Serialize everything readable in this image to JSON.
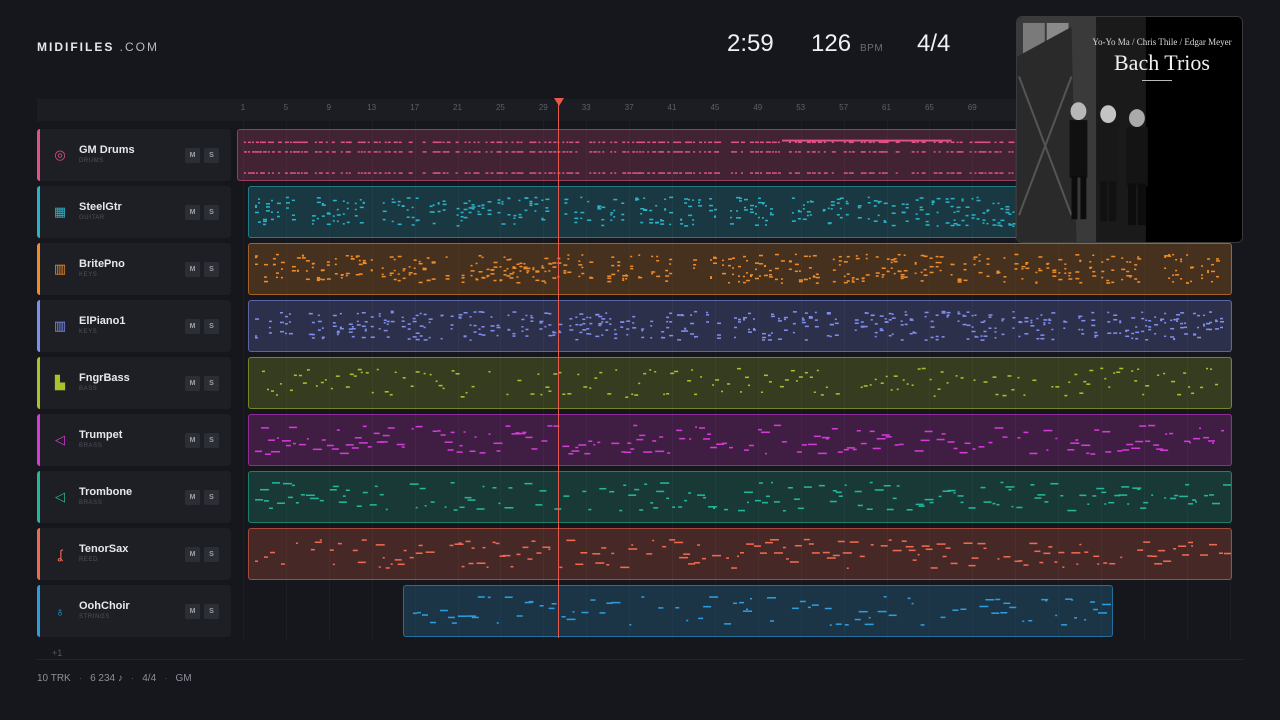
{
  "app": {
    "logo_bold": "MIDIFILES",
    "logo_rest": " .COM"
  },
  "transport": {
    "time": "2:59",
    "bpm": "126",
    "bpm_unit": "BPM",
    "meter": "4/4",
    "playhead_bar": 29
  },
  "ruler": {
    "ticks": [
      "1",
      "5",
      "9",
      "13",
      "17",
      "21",
      "25",
      "29",
      "33",
      "37",
      "41",
      "45",
      "49",
      "53",
      "57",
      "61",
      "65",
      "69"
    ]
  },
  "tracks": [
    {
      "name": "GM Drums",
      "category": "DRUMS",
      "color": "#e0518a",
      "icon": "drum-icon",
      "glyph": "◎",
      "mute": "M",
      "solo": "S"
    },
    {
      "name": "SteelGtr",
      "category": "GUITAR",
      "color": "#2ab3c8",
      "icon": "guitar-icon",
      "glyph": "▦",
      "mute": "M",
      "solo": "S"
    },
    {
      "name": "BritePno",
      "category": "KEYS",
      "color": "#f08c2a",
      "icon": "piano-icon",
      "glyph": "▥",
      "mute": "M",
      "solo": "S"
    },
    {
      "name": "ElPiano1",
      "category": "KEYS",
      "color": "#7f8ff0",
      "icon": "piano-icon",
      "glyph": "▥",
      "mute": "M",
      "solo": "S"
    },
    {
      "name": "FngrBass",
      "category": "BASS",
      "color": "#a8c22c",
      "icon": "bass-icon",
      "glyph": "▙",
      "mute": "M",
      "solo": "S"
    },
    {
      "name": "Trumpet",
      "category": "BRASS",
      "color": "#d43bd8",
      "icon": "trumpet-icon",
      "glyph": "◁",
      "mute": "M",
      "solo": "S"
    },
    {
      "name": "Trombone",
      "category": "BRASS",
      "color": "#23b89c",
      "icon": "trombone-icon",
      "glyph": "◁",
      "mute": "M",
      "solo": "S"
    },
    {
      "name": "TenorSax",
      "category": "REED",
      "color": "#f06a50",
      "icon": "sax-icon",
      "glyph": "ʆ",
      "mute": "M",
      "solo": "S"
    },
    {
      "name": "OohChoir",
      "category": "STRINGS",
      "color": "#2c9ee0",
      "icon": "choir-icon",
      "glyph": "♁",
      "mute": "M",
      "solo": "S"
    }
  ],
  "add_track_label": "+1",
  "footer": {
    "tracks": "10 TRK",
    "notes": "6 234 ♪",
    "meter": "4/4",
    "standard": "GM"
  },
  "album": {
    "artists": "Yo-Yo Ma / Chris Thile / Edgar Meyer",
    "title": "Bach Trios"
  }
}
